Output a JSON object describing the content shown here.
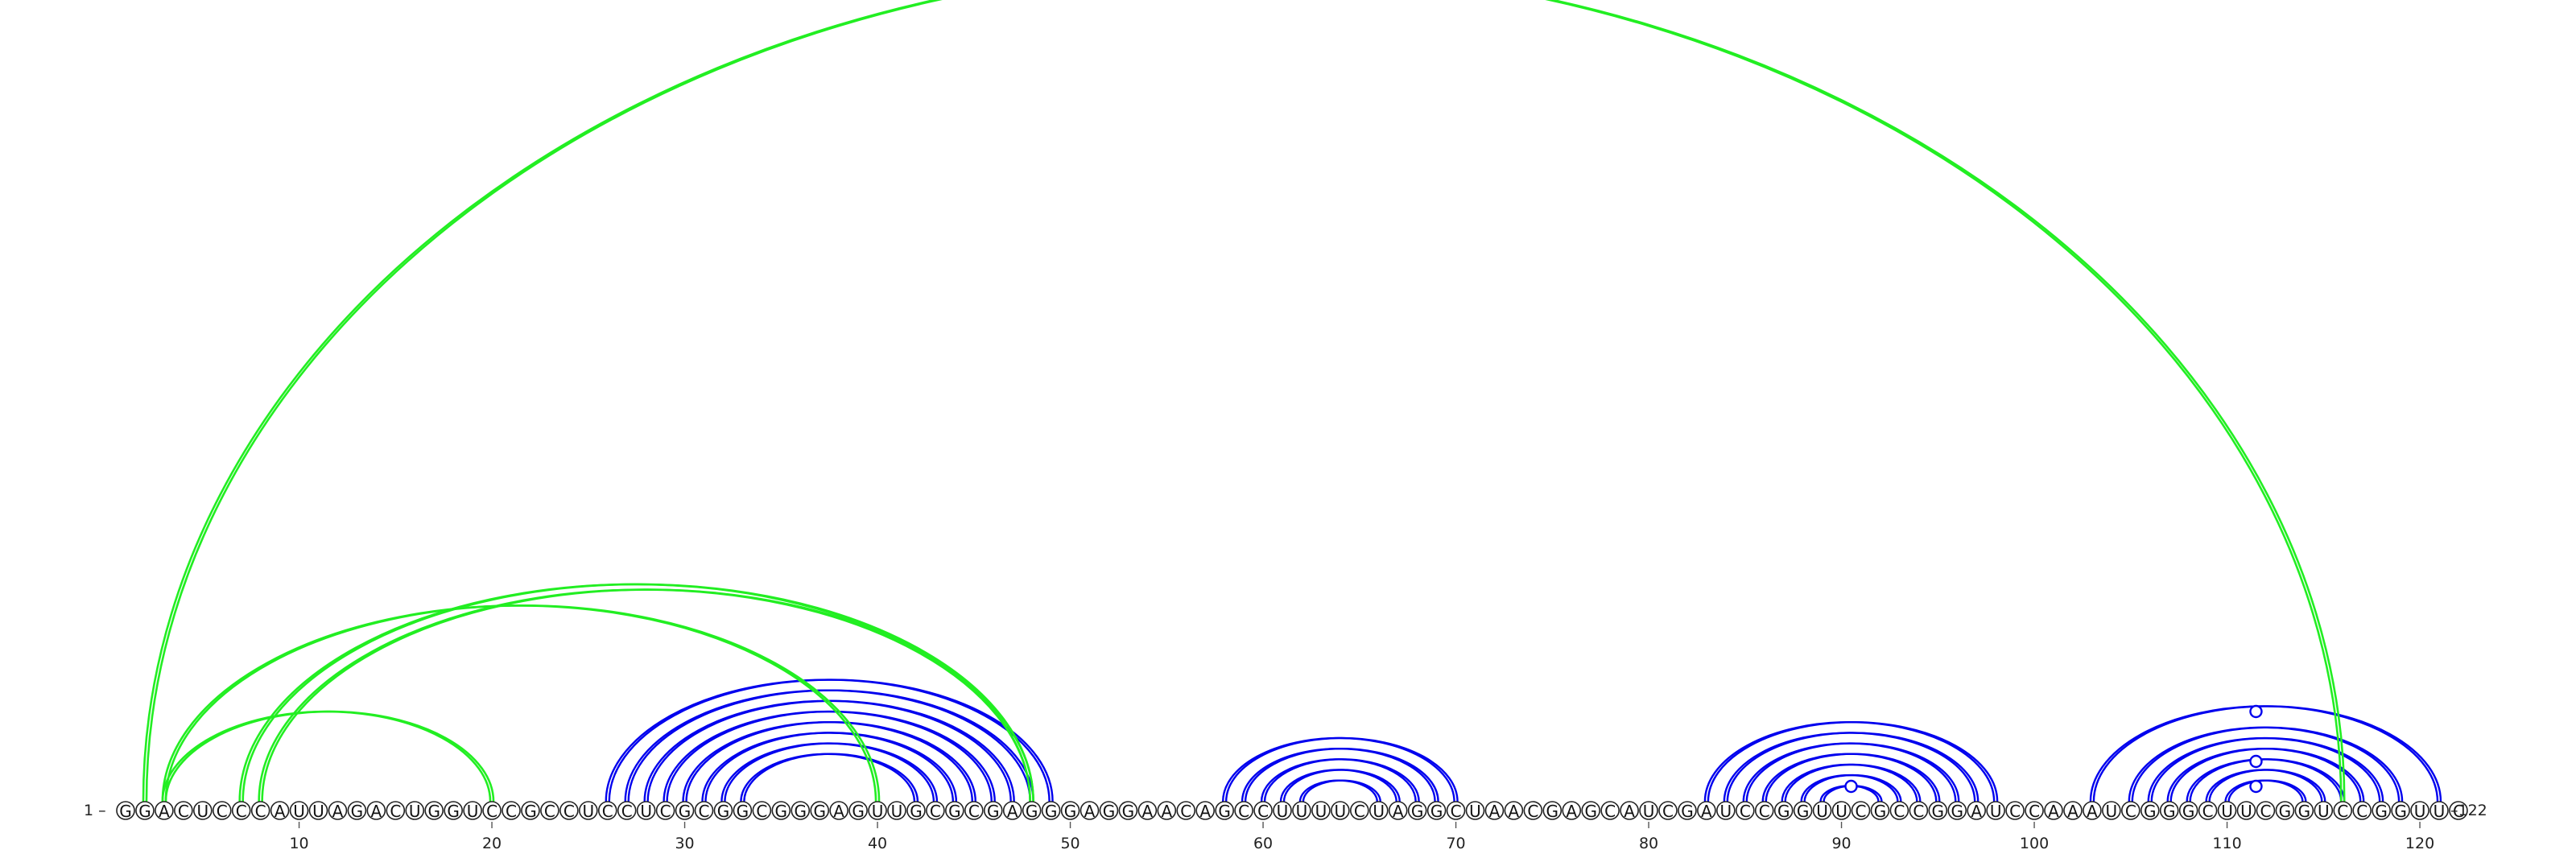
{
  "sequence": "GGACUCCCAUUAGACUGGUCCGCCUCCUCGCGGCGGGAGUUGCGCGAGGGAGGAACAGCCUUUUCUAGGCUAACGAGCAUCGAUCCGGUUCGCCGGAUCCAAAUCGGGCUUCGGUCCGGUUC",
  "start_label": "1 –",
  "end_label": "–122",
  "ticks": [
    "10",
    "20",
    "30",
    "40",
    "50",
    "60",
    "70",
    "80",
    "90",
    "100",
    "110",
    "120"
  ],
  "colors": {
    "primary_pairs": "#0000ee",
    "alternative_pairs": "#22ee22"
  },
  "blue_pairs": [
    [
      26,
      49
    ],
    [
      27,
      48
    ],
    [
      28,
      47
    ],
    [
      29,
      46
    ],
    [
      30,
      45
    ],
    [
      31,
      44
    ],
    [
      32,
      43
    ],
    [
      33,
      42
    ],
    [
      58,
      70
    ],
    [
      59,
      69
    ],
    [
      60,
      68
    ],
    [
      61,
      67
    ],
    [
      62,
      66
    ],
    [
      83,
      98
    ],
    [
      84,
      97
    ],
    [
      85,
      96
    ],
    [
      86,
      95
    ],
    [
      87,
      94
    ],
    [
      88,
      93
    ],
    [
      89,
      92
    ],
    [
      103,
      121
    ],
    [
      105,
      119
    ],
    [
      106,
      118
    ],
    [
      107,
      117
    ],
    [
      108,
      116
    ],
    [
      109,
      115
    ],
    [
      110,
      114
    ]
  ],
  "blue_nodes": [
    90.5,
    111.5,
    111.5,
    111.5
  ],
  "green_pairs": [
    [
      2,
      116
    ],
    [
      3,
      40
    ],
    [
      3,
      20
    ],
    [
      8,
      48
    ],
    [
      7,
      48
    ]
  ]
}
